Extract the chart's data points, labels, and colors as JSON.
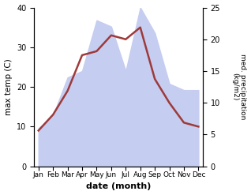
{
  "months": [
    "Jan",
    "Feb",
    "Mar",
    "Apr",
    "May",
    "Jun",
    "Jul",
    "Aug",
    "Sep",
    "Oct",
    "Nov",
    "Dec"
  ],
  "month_positions": [
    0,
    1,
    2,
    3,
    4,
    5,
    6,
    7,
    8,
    9,
    10,
    11
  ],
  "max_temp": [
    9,
    13,
    19,
    28,
    29,
    33,
    32,
    35,
    22,
    16,
    11,
    10
  ],
  "precipitation": [
    6,
    8,
    14,
    15,
    23,
    22,
    15,
    25,
    21,
    13,
    12,
    12
  ],
  "temp_color": "#9e3a3a",
  "precip_fill_color": "#c5cdf0",
  "ylabel_left": "max temp (C)",
  "ylabel_right": "med. precipitation\n(kg/m2)",
  "xlabel": "date (month)",
  "ylim_left": [
    0,
    40
  ],
  "ylim_right": [
    0,
    25
  ],
  "title": ""
}
